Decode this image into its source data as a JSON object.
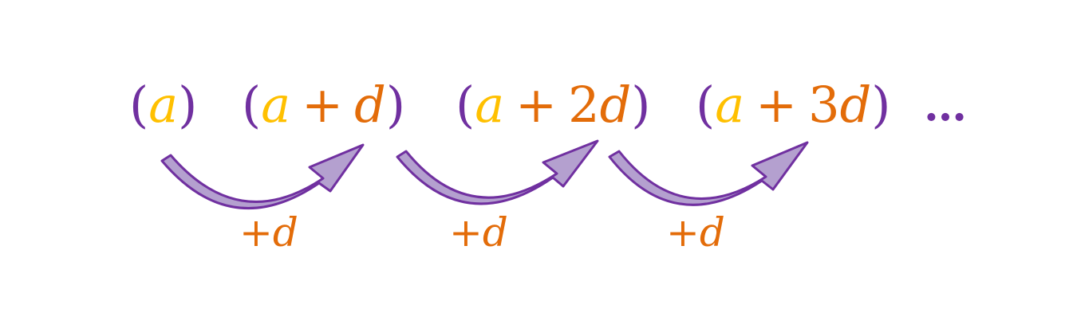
{
  "sequence": {
    "terms": [
      {
        "a": "a",
        "op": "",
        "coef": "",
        "d": ""
      },
      {
        "a": "a",
        "op": "+",
        "coef": "",
        "d": "d"
      },
      {
        "a": "a",
        "op": "+",
        "coef": "2",
        "d": "d"
      },
      {
        "a": "a",
        "op": "+",
        "coef": "3",
        "d": "d"
      }
    ],
    "open_paren": "(",
    "close_paren": ")",
    "ellipsis": "…"
  },
  "steps": [
    {
      "sign": "+",
      "var": "d"
    },
    {
      "sign": "+",
      "var": "d"
    },
    {
      "sign": "+",
      "var": "d"
    }
  ],
  "colors": {
    "paren": "#7030A0",
    "a": "#FFC000",
    "d": "#E36C09",
    "arrow_fill": "#B4A0CF",
    "arrow_stroke": "#7030A0"
  }
}
